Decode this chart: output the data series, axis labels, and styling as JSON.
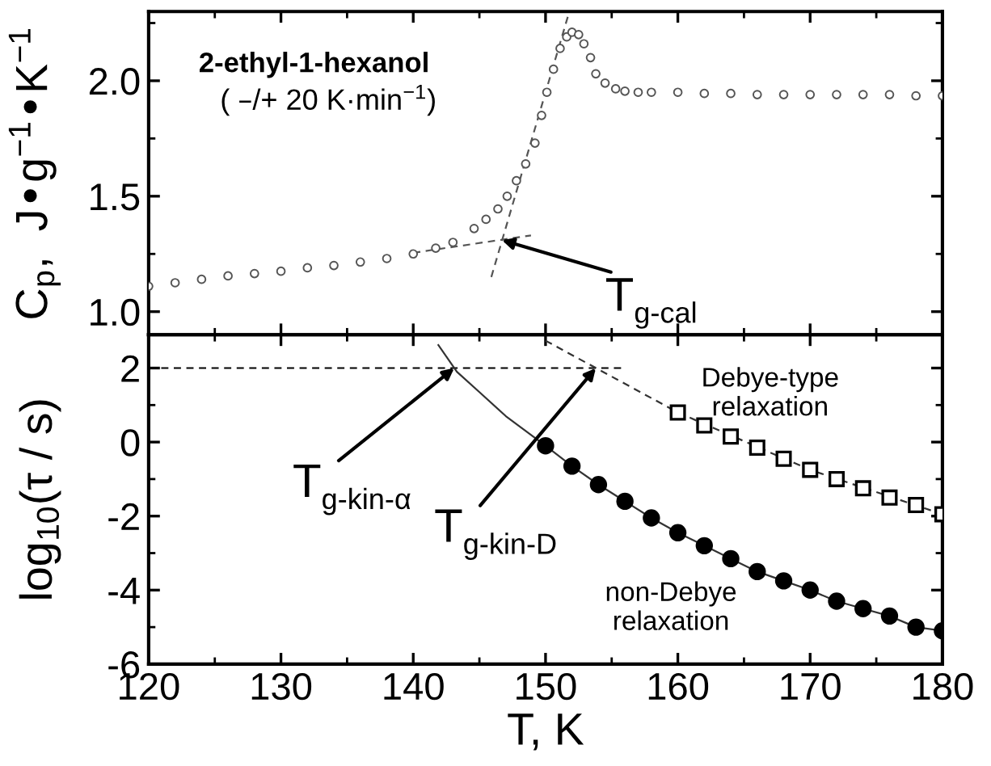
{
  "chart_data": [
    {
      "type": "scatter",
      "title": "2-ethyl-1-hexanol",
      "subtitle": "( –/+ 20 K·min$^{−1}$)",
      "ylabel": "C$_{p}$,  J•g$^{−1}$•K$^{−1}$",
      "xlim": [
        120,
        180
      ],
      "xticks": [
        120,
        130,
        140,
        150,
        160,
        170,
        180
      ],
      "ylim": [
        0.9,
        2.3
      ],
      "yticks": [
        {
          "value": 1.0,
          "label": "1.0"
        },
        {
          "value": 1.5,
          "label": "1.5"
        },
        {
          "value": 2.0,
          "label": "2.0"
        }
      ],
      "tick_labels": "y",
      "grid": false,
      "legend": false,
      "series": [
        {
          "color": "#555555",
          "marker": "circle",
          "x": [
            120,
            122,
            124,
            126,
            128,
            130,
            132,
            134,
            136,
            138,
            140,
            141.7,
            143,
            144.6,
            145.5,
            146.4,
            147.1,
            147.8,
            148.5,
            149.2,
            149.7,
            150.1,
            150.6,
            151.1,
            151.6,
            152,
            152.5,
            152.9,
            153.4,
            153.8,
            154.5,
            155.3,
            156,
            157,
            158,
            160,
            162,
            164,
            166,
            168,
            170,
            172,
            174,
            176,
            178,
            180
          ],
          "values": [
            1.11,
            1.125,
            1.14,
            1.155,
            1.165,
            1.175,
            1.19,
            1.2,
            1.215,
            1.23,
            1.25,
            1.275,
            1.3,
            1.36,
            1.4,
            1.445,
            1.5,
            1.567,
            1.64,
            1.73,
            1.85,
            1.95,
            2.05,
            2.14,
            2.19,
            2.21,
            2.2,
            2.16,
            2.1,
            2.03,
            1.99,
            1.965,
            1.955,
            1.95,
            1.95,
            1.95,
            1.945,
            1.945,
            1.94,
            1.94,
            1.94,
            1.94,
            1.94,
            1.94,
            1.935,
            1.935
          ]
        },
        {
          "type": "line",
          "color": "#555555",
          "line_style": "dashed",
          "x": [
            140,
            148.9
          ],
          "values": [
            1.255,
            1.33
          ]
        },
        {
          "type": "line",
          "color": "#555555",
          "line_style": "dashed",
          "x": [
            145.9,
            151.8
          ],
          "values": [
            1.15,
            2.3
          ]
        }
      ],
      "annotations": [
        {
          "text": "T$_{g-cal}$",
          "x": 146.7,
          "y": 1.31
        }
      ]
    },
    {
      "type": "scatter",
      "xlabel": "T, K",
      "ylabel": "log$_{10}$(τ / s)",
      "xlim": [
        120,
        180
      ],
      "xticks": [
        120,
        130,
        140,
        150,
        160,
        170,
        180
      ],
      "ylim": [
        -6,
        2.9
      ],
      "yticks": [
        -6,
        -4,
        -2,
        0,
        2
      ],
      "grid": false,
      "legend": false,
      "series": [
        {
          "type": "line",
          "color": "#000000",
          "line_style": "dashed",
          "x": [
            120,
            156
          ],
          "values": [
            2,
            2
          ]
        },
        {
          "type": "line",
          "color": "#333333",
          "line_style": "solid",
          "x": [
            141.9,
            143.3,
            145,
            147,
            148.5,
            150,
            152,
            154,
            156,
            158,
            160,
            162,
            164,
            166,
            168,
            170,
            172,
            174,
            176,
            178,
            180
          ],
          "values": [
            2.62,
            1.9,
            1.35,
            0.7,
            0.3,
            -0.1,
            -0.65,
            -1.15,
            -1.6,
            -2.05,
            -2.45,
            -2.8,
            -3.15,
            -3.5,
            -3.75,
            -4.0,
            -4.3,
            -4.5,
            -4.7,
            -5.0,
            -5.1
          ]
        },
        {
          "type": "line",
          "color": "#333333",
          "line_style": "dashed",
          "x": [
            150,
            160,
            170,
            180
          ],
          "values": [
            2.74,
            0.8,
            -0.75,
            -1.95
          ]
        },
        {
          "color": "#000000",
          "marker": "circle",
          "x": [
            150,
            152,
            154,
            156,
            158,
            160,
            162,
            164,
            166,
            168,
            170,
            172,
            174,
            176,
            178,
            180
          ],
          "values": [
            -0.1,
            -0.65,
            -1.15,
            -1.6,
            -2.05,
            -2.45,
            -2.8,
            -3.15,
            -3.5,
            -3.75,
            -4.0,
            -4.3,
            -4.5,
            -4.7,
            -5.0,
            -5.1
          ]
        },
        {
          "color": "#000000",
          "marker": "square",
          "x": [
            160,
            162,
            164,
            166,
            168,
            170,
            172,
            174,
            176,
            178,
            180
          ],
          "values": [
            0.8,
            0.45,
            0.15,
            -0.15,
            -0.45,
            -0.75,
            -1.0,
            -1.25,
            -1.5,
            -1.7,
            -1.95
          ]
        }
      ],
      "annotations": [
        {
          "text": "T$_{g-kin-α}$",
          "x": 143.1,
          "y": 2
        },
        {
          "text": "T$_{g-kin-D}$",
          "x": 153.8,
          "y": 2
        },
        "Debye-type\nrelaxation",
        "non-Debye\nrelaxation"
      ]
    }
  ]
}
